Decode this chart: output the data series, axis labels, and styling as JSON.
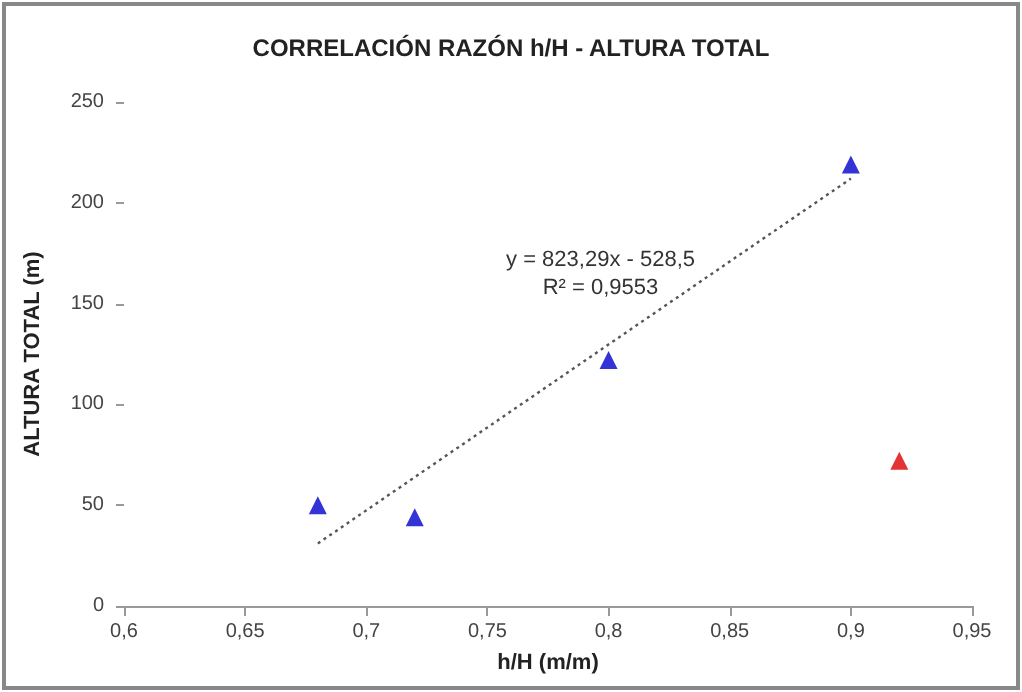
{
  "chart_data": {
    "type": "scatter",
    "title": "CORRELACIÓN RAZÓN h/H - ALTURA TOTAL",
    "xlabel": "h/H (m/m)",
    "ylabel": "ALTURA TOTAL (m)",
    "annotations": [
      "y = 823,29x - 528,5",
      "R² = 0,9553"
    ],
    "marker": "triangle",
    "grid": false,
    "series": [
      {
        "color": "#0000cc",
        "x": [
          0.68,
          0.72,
          0.8,
          0.9
        ],
        "values": [
          50,
          44,
          122,
          219
        ]
      },
      {
        "color": "#dd0000",
        "x": [
          0.92
        ],
        "values": [
          72
        ]
      },
      {
        "type": "line",
        "color": "#555555",
        "line_style": "dotted",
        "marker": "none",
        "x": [
          0.68,
          0.9
        ],
        "values": [
          31,
          212
        ]
      }
    ],
    "xlim": [
      0.6,
      0.95
    ],
    "xticks": [
      {
        "value": 0.6,
        "label": "0,6"
      },
      {
        "value": 0.65,
        "label": "0,65"
      },
      {
        "value": 0.7,
        "label": "0,7"
      },
      {
        "value": 0.75,
        "label": "0,75"
      },
      {
        "value": 0.8,
        "label": "0,8"
      },
      {
        "value": 0.85,
        "label": "0,85"
      },
      {
        "value": 0.9,
        "label": "0,9"
      },
      {
        "value": 0.95,
        "label": "0,95"
      }
    ],
    "ylim": [
      0,
      250
    ],
    "yticks": [
      0,
      50,
      100,
      150,
      200,
      250
    ]
  }
}
